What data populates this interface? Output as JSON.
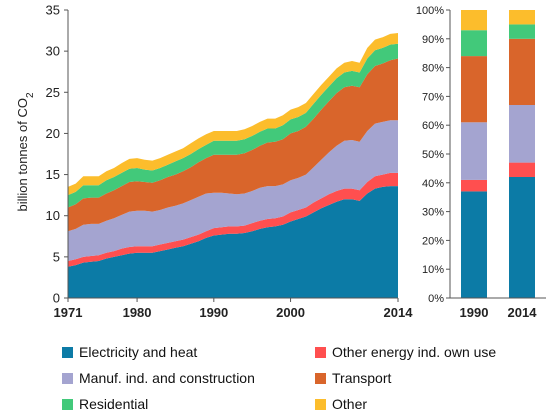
{
  "chart_data": [
    {
      "type": "area",
      "stacked": true,
      "ylabel": "billion tonnes of CO",
      "ylabel_subscript": "2",
      "ylim": [
        0,
        35
      ],
      "yticks": [
        "0",
        "5",
        "10",
        "15",
        "20",
        "25",
        "30",
        "35"
      ],
      "xlim": [
        1971,
        2014
      ],
      "xticks": [
        "1971",
        "1980",
        "1990",
        "2000",
        "2014"
      ],
      "grid": false,
      "x": [
        1971,
        1972,
        1973,
        1974,
        1975,
        1976,
        1977,
        1978,
        1979,
        1980,
        1981,
        1982,
        1983,
        1984,
        1985,
        1986,
        1987,
        1988,
        1989,
        1990,
        1991,
        1992,
        1993,
        1994,
        1995,
        1996,
        1997,
        1998,
        1999,
        2000,
        2001,
        2002,
        2003,
        2004,
        2005,
        2006,
        2007,
        2008,
        2009,
        2010,
        2011,
        2012,
        2013,
        2014
      ],
      "series": [
        {
          "name": "Electricity and heat",
          "color": "#0c7ba6",
          "values": [
            3.8,
            4.0,
            4.3,
            4.4,
            4.5,
            4.8,
            5.0,
            5.2,
            5.4,
            5.5,
            5.5,
            5.5,
            5.7,
            5.9,
            6.1,
            6.3,
            6.6,
            6.9,
            7.3,
            7.6,
            7.7,
            7.8,
            7.8,
            7.9,
            8.1,
            8.4,
            8.6,
            8.7,
            8.9,
            9.3,
            9.6,
            9.9,
            10.4,
            10.9,
            11.3,
            11.7,
            12.0,
            12.0,
            11.8,
            12.7,
            13.3,
            13.5,
            13.6,
            13.6
          ]
        },
        {
          "name": "Other energy ind. own use",
          "color": "#ff4f4f",
          "values": [
            0.7,
            0.7,
            0.7,
            0.7,
            0.7,
            0.7,
            0.7,
            0.8,
            0.8,
            0.8,
            0.8,
            0.8,
            0.8,
            0.8,
            0.8,
            0.8,
            0.8,
            0.8,
            0.8,
            0.9,
            0.9,
            0.9,
            0.9,
            0.9,
            1.0,
            1.0,
            1.0,
            1.0,
            1.0,
            1.1,
            1.1,
            1.1,
            1.2,
            1.2,
            1.3,
            1.3,
            1.3,
            1.3,
            1.3,
            1.4,
            1.5,
            1.5,
            1.6,
            1.6
          ]
        },
        {
          "name": "Manuf. ind. and construction",
          "color": "#a4a4d0",
          "values": [
            3.6,
            3.7,
            3.9,
            3.9,
            3.8,
            3.9,
            4.0,
            4.1,
            4.3,
            4.3,
            4.3,
            4.2,
            4.2,
            4.3,
            4.3,
            4.4,
            4.5,
            4.6,
            4.6,
            4.3,
            4.2,
            4.0,
            3.9,
            3.9,
            3.9,
            4.0,
            4.0,
            3.9,
            3.9,
            3.9,
            3.9,
            4.0,
            4.3,
            4.7,
            5.1,
            5.5,
            5.8,
            5.9,
            5.9,
            6.2,
            6.4,
            6.4,
            6.4,
            6.4
          ]
        },
        {
          "name": "Transport",
          "color": "#d9652b",
          "values": [
            2.9,
            3.0,
            3.2,
            3.2,
            3.2,
            3.3,
            3.4,
            3.5,
            3.6,
            3.6,
            3.5,
            3.5,
            3.6,
            3.7,
            3.8,
            3.9,
            4.0,
            4.2,
            4.3,
            4.6,
            4.6,
            4.7,
            4.8,
            4.9,
            5.0,
            5.1,
            5.3,
            5.4,
            5.5,
            5.7,
            5.7,
            5.8,
            5.9,
            6.1,
            6.2,
            6.4,
            6.5,
            6.6,
            6.6,
            6.9,
            7.0,
            7.1,
            7.3,
            7.5
          ]
        },
        {
          "name": "Residential",
          "color": "#42c97a",
          "values": [
            1.5,
            1.5,
            1.6,
            1.5,
            1.5,
            1.6,
            1.6,
            1.6,
            1.6,
            1.6,
            1.5,
            1.5,
            1.5,
            1.5,
            1.6,
            1.6,
            1.6,
            1.6,
            1.6,
            1.7,
            1.7,
            1.7,
            1.7,
            1.7,
            1.7,
            1.7,
            1.7,
            1.6,
            1.7,
            1.7,
            1.7,
            1.7,
            1.8,
            1.8,
            1.8,
            1.8,
            1.8,
            1.8,
            1.8,
            1.9,
            1.9,
            1.9,
            1.9,
            1.8
          ]
        },
        {
          "name": "Other",
          "color": "#fcbd2c",
          "values": [
            1.0,
            1.0,
            1.1,
            1.1,
            1.1,
            1.1,
            1.1,
            1.2,
            1.2,
            1.2,
            1.2,
            1.2,
            1.2,
            1.2,
            1.2,
            1.2,
            1.3,
            1.3,
            1.3,
            1.2,
            1.2,
            1.2,
            1.2,
            1.2,
            1.2,
            1.2,
            1.2,
            1.2,
            1.2,
            1.2,
            1.2,
            1.2,
            1.2,
            1.2,
            1.2,
            1.2,
            1.2,
            1.2,
            1.2,
            1.3,
            1.3,
            1.3,
            1.3,
            1.3
          ]
        }
      ]
    },
    {
      "type": "bar",
      "stacked": true,
      "percent": true,
      "categories": [
        "1990",
        "2014"
      ],
      "ylim": [
        0,
        100
      ],
      "yticks": [
        "0%",
        "10%",
        "20%",
        "30%",
        "40%",
        "50%",
        "60%",
        "70%",
        "80%",
        "90%",
        "100%"
      ],
      "grid": false,
      "series": [
        {
          "name": "Electricity and heat",
          "color": "#0c7ba6",
          "values": [
            37,
            42
          ]
        },
        {
          "name": "Other energy ind. own use",
          "color": "#ff4f4f",
          "values": [
            4,
            5
          ]
        },
        {
          "name": "Manuf. ind. and construction",
          "color": "#a4a4d0",
          "values": [
            20,
            20
          ]
        },
        {
          "name": "Transport",
          "color": "#d9652b",
          "values": [
            23,
            23
          ]
        },
        {
          "name": "Residential",
          "color": "#42c97a",
          "values": [
            9,
            5
          ]
        },
        {
          "name": "Other",
          "color": "#fcbd2c",
          "values": [
            7,
            5
          ]
        }
      ]
    }
  ],
  "legend": {
    "placement": "bottom",
    "items": [
      {
        "label": "Electricity and heat",
        "color": "#0c7ba6"
      },
      {
        "label": "Other energy ind. own use",
        "color": "#ff4f4f"
      },
      {
        "label": "Manuf. ind. and construction",
        "color": "#a4a4d0"
      },
      {
        "label": "Transport",
        "color": "#d9652b"
      },
      {
        "label": "Residential",
        "color": "#42c97a"
      },
      {
        "label": "Other",
        "color": "#fcbd2c"
      }
    ]
  }
}
